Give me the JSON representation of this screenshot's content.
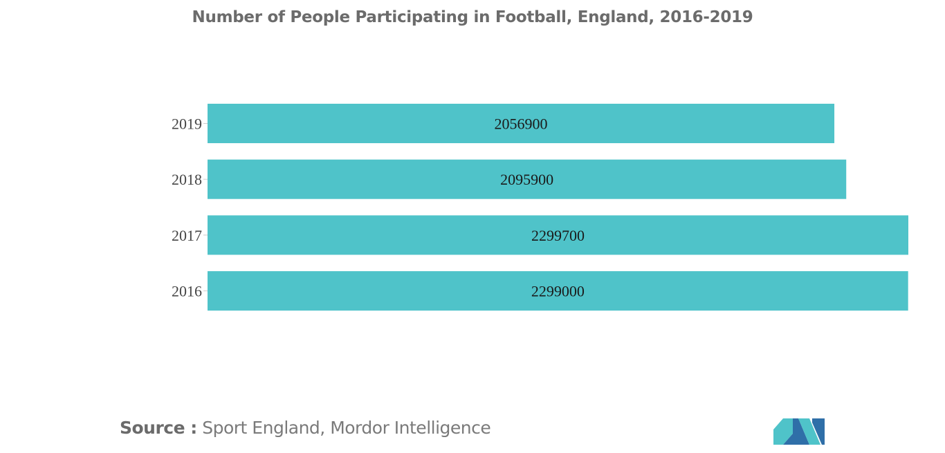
{
  "chart_data": {
    "type": "bar",
    "orientation": "horizontal",
    "title": "Number of People Participating in Football, England, 2016-2019",
    "categories": [
      "2019",
      "2018",
      "2017",
      "2016"
    ],
    "values": [
      2056900,
      2095900,
      2299700,
      2299000
    ],
    "value_labels": [
      "2056900",
      "2095900",
      "2299700",
      "2299000"
    ],
    "xlim": [
      0,
      2299700
    ],
    "grid": false,
    "legend": "none",
    "bar_color": "#4fc3c9"
  },
  "source": {
    "prefix": "Source :",
    "text": "Sport England, Mordor Intelligence"
  },
  "logo": {
    "icon": "mordor-intelligence-logo-icon",
    "colors": [
      "#2f6fa8",
      "#4fc3c9"
    ]
  }
}
